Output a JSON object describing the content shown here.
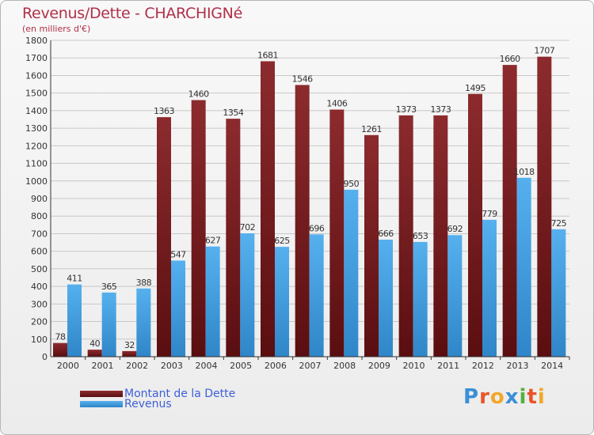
{
  "header": {
    "title": "Revenus/Dette - CHARCHIGNé",
    "subtitle": "(en milliers d'€)"
  },
  "legend": {
    "debt_label": "Montant de la Dette",
    "revenue_label": "Revenus"
  },
  "logo": {
    "text": "Proxiti",
    "colors": [
      "#3a8fd6",
      "#e8542a",
      "#f1a72a",
      "#3a8fd6",
      "#55b03d",
      "#e8542a",
      "#f1a72a"
    ]
  },
  "colors": {
    "debt": "#7a1f22",
    "revenue": "#4aa3e4",
    "axis": "#333333",
    "grid": "#c8c8c8"
  },
  "chart_data": {
    "type": "bar",
    "title": "Revenus/Dette - CHARCHIGNé",
    "subtitle": "(en milliers d'€)",
    "categories": [
      "2000",
      "2001",
      "2002",
      "2003",
      "2004",
      "2005",
      "2006",
      "2007",
      "2008",
      "2009",
      "2010",
      "2011",
      "2012",
      "2013",
      "2014"
    ],
    "series": [
      {
        "name": "Montant de la Dette",
        "values": [
          78,
          40,
          32,
          1363,
          1460,
          1354,
          1681,
          1546,
          1406,
          1261,
          1373,
          1373,
          1495,
          1660,
          1707
        ]
      },
      {
        "name": "Revenus",
        "values": [
          411,
          365,
          388,
          547,
          627,
          702,
          625,
          696,
          950,
          666,
          653,
          692,
          779,
          1018,
          725
        ]
      }
    ],
    "ylim": [
      0,
      1800
    ],
    "yticks": [
      0,
      100,
      200,
      300,
      400,
      500,
      600,
      700,
      800,
      900,
      1000,
      1100,
      1200,
      1300,
      1400,
      1500,
      1600,
      1700,
      1800
    ],
    "grid": true,
    "legend_position": "bottom-left"
  }
}
